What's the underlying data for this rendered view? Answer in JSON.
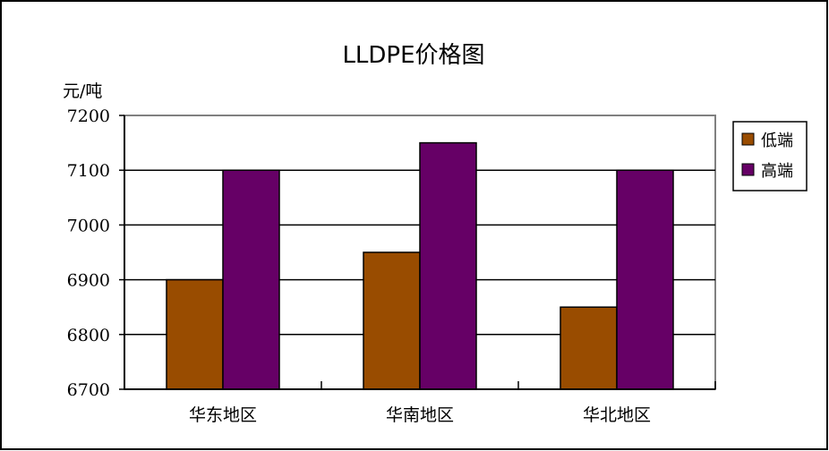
{
  "chart_data": {
    "type": "bar",
    "title": "LLDPE价格图",
    "ylabel": "元/吨",
    "xlabel": "",
    "categories": [
      "华东地区",
      "华南地区",
      "华北地区"
    ],
    "ylim": [
      6700,
      7200
    ],
    "yticks": [
      6700,
      6800,
      6900,
      7000,
      7100,
      7200
    ],
    "grid": true,
    "legend_position": "right",
    "series": [
      {
        "name": "低端",
        "values": [
          6900,
          6950,
          6850
        ],
        "color": "#994C00"
      },
      {
        "name": "高端",
        "values": [
          7100,
          7150,
          7100
        ],
        "color": "#660066"
      }
    ]
  }
}
